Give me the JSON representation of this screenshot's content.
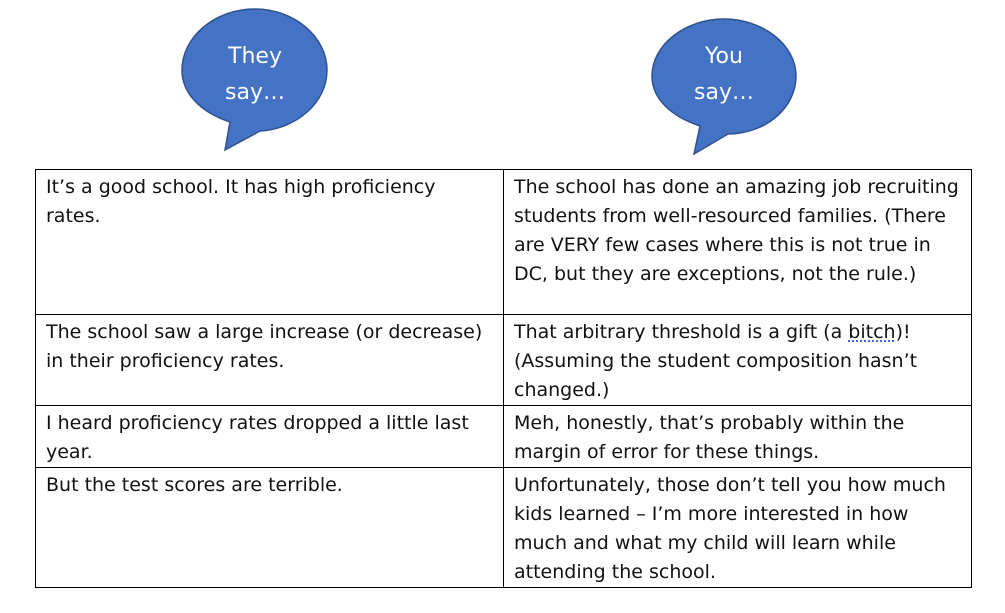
{
  "bubbles": {
    "left": {
      "line1": "They",
      "line2": "say…"
    },
    "right": {
      "line1": "You",
      "line2": "say…"
    },
    "fill_color": "#4472c4",
    "stroke_color": "#2f528f"
  },
  "table": {
    "rows": [
      {
        "they_say": "It’s a good school. It has high proficiency rates.",
        "you_say": "The school has done an amazing job recruiting students from well-resourced families. (There are VERY few cases where this is not true in DC, but they are exceptions, not the rule.)"
      },
      {
        "they_say": "The school saw a large increase (or decrease) in their proficiency rates.",
        "you_say_before": "That arbitrary threshold is a gift (a ",
        "you_say_flagged": "bitch",
        "you_say_after": ")! (Assuming the student composition hasn’t changed.)"
      },
      {
        "they_say": "I heard proficiency rates dropped a little last year.",
        "you_say": "Meh, honestly, that’s probably within the margin of error for these things."
      },
      {
        "they_say": "But the test scores are terrible.",
        "you_say": "Unfortunately, those don’t tell you how much kids learned – I’m more interested in how much and what my child will learn while attending the school."
      }
    ]
  }
}
